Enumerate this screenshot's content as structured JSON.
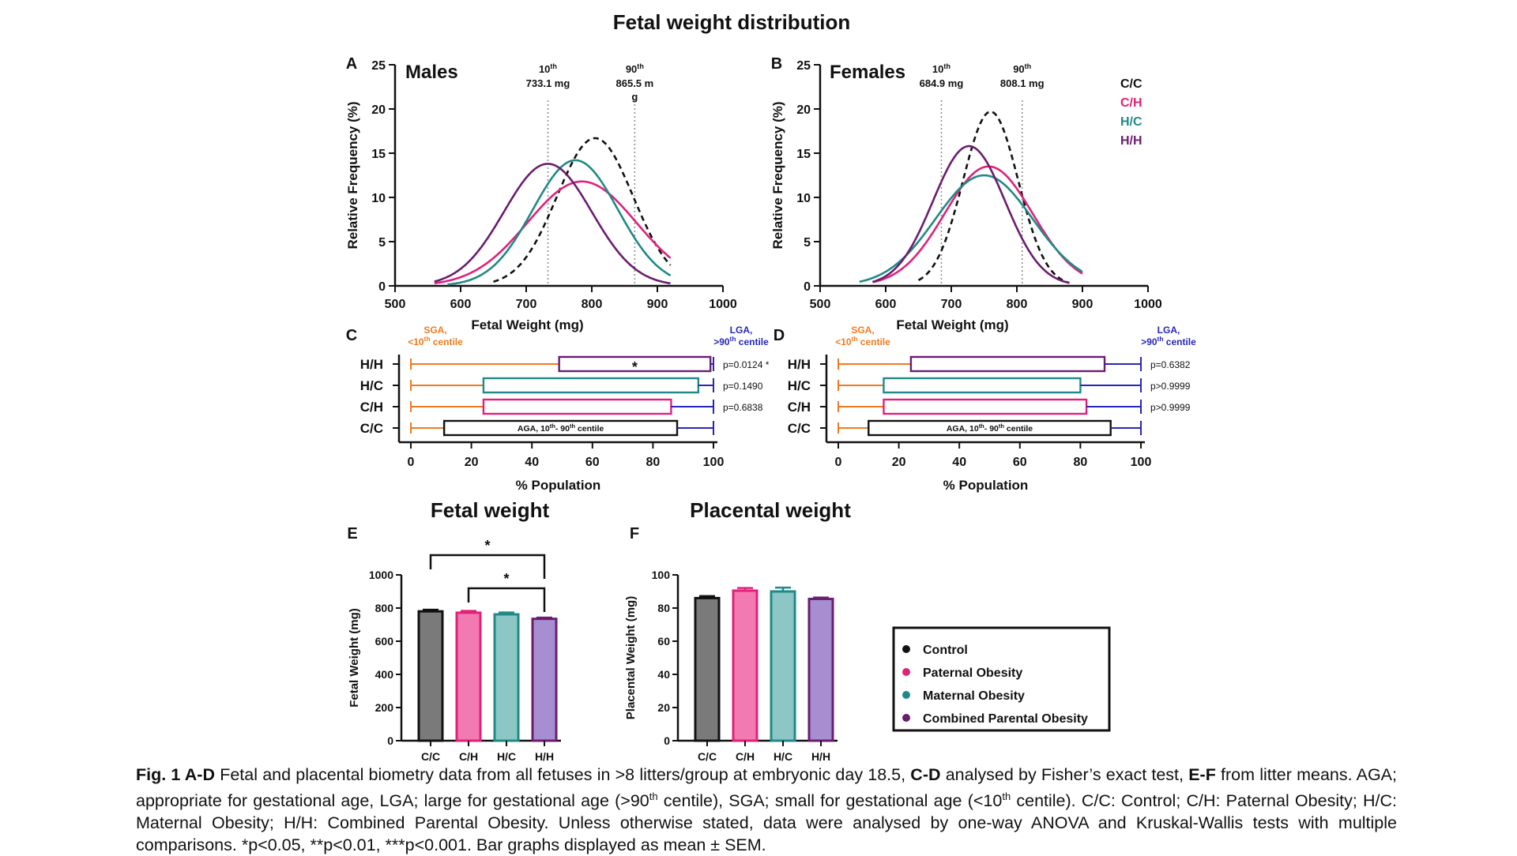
{
  "figure_title": "Fetal weight distribution",
  "colors": {
    "C/C": "#111111",
    "C/H": "#e0217a",
    "H/C": "#1f8a87",
    "H/H": "#6b1d6e",
    "orange": "#f07a22",
    "blue": "#2626b8",
    "control_fill": "#7a7a7a",
    "paternal_fill": "#f27ab0",
    "maternal_fill": "#8cc7c5",
    "combined_fill": "#a68ed0"
  },
  "legend_top": {
    "items": [
      "C/C",
      "C/H",
      "H/C",
      "H/H"
    ]
  },
  "legend_bottom": {
    "items": [
      "Control",
      "Paternal Obesity",
      "Maternal Obesity",
      "Combined Parental Obesity"
    ]
  },
  "captions": {
    "bold1": "Fig. 1 A-D",
    "t1": " Fetal and placental biometry data from all fetuses in >8 litters/group at embryonic day 18.5, ",
    "bold2": "C-D",
    "t2": " analysed by Fisher’s exact test, ",
    "bold3": "E-F",
    "t3": " from litter means. AGA; appropriate for gestational age, LGA; large for gestational age (>90",
    "sup1": "th",
    "t4": " centile), SGA; small for gestational age (<10",
    "sup2": "th",
    "t5": " centile). C/C: Control; C/H: Paternal Obesity; H/C: Maternal Obesity; H/H: Combined Parental Obesity. Unless otherwise stated, data were analysed by one-way ANOVA and Kruskal-Wallis tests with multiple comparisons. *p<0.05, **p<0.01, ***p<0.001. Bar graphs displayed as mean ± SEM."
  },
  "chart_data": [
    {
      "panel": "A",
      "type": "line",
      "title": "Males",
      "xlabel": "Fetal Weight (mg)",
      "ylabel": "Relative Frequency (%)",
      "xlim": [
        500,
        1000
      ],
      "ylim": [
        0,
        25
      ],
      "xticks": [
        500,
        600,
        700,
        800,
        900,
        1000
      ],
      "yticks": [
        0,
        5,
        10,
        15,
        20,
        25
      ],
      "ref_lines": [
        {
          "x": 733.1,
          "label_top": "10",
          "label_sup": "th",
          "label_value": "733.1 mg"
        },
        {
          "x": 865.5,
          "label_top": "90",
          "label_sup": "th",
          "label_value": "865.5 m",
          "label_wrap": "g"
        }
      ],
      "series": [
        {
          "name": "C/C",
          "mean": 805,
          "sd": 58,
          "peak": 16.7,
          "xrange": [
            650,
            920
          ],
          "dashed": true
        },
        {
          "name": "C/H",
          "mean": 785,
          "sd": 83,
          "peak": 11.8,
          "xrange": [
            560,
            920
          ]
        },
        {
          "name": "H/C",
          "mean": 775,
          "sd": 65,
          "peak": 14.2,
          "xrange": [
            580,
            920
          ]
        },
        {
          "name": "H/H",
          "mean": 733,
          "sd": 67,
          "peak": 13.8,
          "xrange": [
            560,
            920
          ]
        }
      ]
    },
    {
      "panel": "B",
      "type": "line",
      "title": "Females",
      "xlabel": "Fetal Weight (mg)",
      "ylabel": "Relative Frequency (%)",
      "xlim": [
        500,
        1000
      ],
      "ylim": [
        0,
        25
      ],
      "xticks": [
        500,
        600,
        700,
        800,
        900,
        1000
      ],
      "yticks": [
        0,
        5,
        10,
        15,
        20,
        25
      ],
      "ref_lines": [
        {
          "x": 684.9,
          "label_top": "10",
          "label_sup": "th",
          "label_value": "684.9 mg"
        },
        {
          "x": 808.1,
          "label_top": "90",
          "label_sup": "th",
          "label_value": "808.1 mg"
        }
      ],
      "series": [
        {
          "name": "C/C",
          "mean": 760,
          "sd": 42,
          "peak": 19.7,
          "xrange": [
            650,
            880
          ],
          "dashed": true
        },
        {
          "name": "C/H",
          "mean": 757,
          "sd": 67,
          "peak": 13.5,
          "xrange": [
            580,
            900
          ]
        },
        {
          "name": "H/C",
          "mean": 750,
          "sd": 74,
          "peak": 12.5,
          "xrange": [
            560,
            900
          ]
        },
        {
          "name": "H/H",
          "mean": 727,
          "sd": 55,
          "peak": 15.8,
          "xrange": [
            580,
            880
          ]
        }
      ]
    },
    {
      "panel": "C",
      "type": "bar",
      "orientation": "horizontal",
      "xlabel": "% Population",
      "xlim": [
        0,
        100
      ],
      "xticks": [
        0,
        20,
        40,
        60,
        80,
        100
      ],
      "sga_label": "SGA,",
      "sga_label2": "<10",
      "sga_sup": "th",
      "sga_label3": " centile",
      "lga_label": "LGA,",
      "lga_label2": ">90",
      "lga_sup": "th",
      "lga_label3": " centile",
      "aga_label": "AGA, 10",
      "aga_sup1": "th",
      "aga_label2": "- 90",
      "aga_sup2": "th",
      "aga_label3": " centile",
      "rows": [
        {
          "group": "H/H",
          "sga": 49,
          "aga": 50,
          "lga": 1,
          "p": "p=0.0124 *",
          "star": "*"
        },
        {
          "group": "H/C",
          "sga": 24,
          "aga": 71,
          "lga": 5,
          "p": "p=0.1490",
          "star": ""
        },
        {
          "group": "C/H",
          "sga": 24,
          "aga": 62,
          "lga": 14,
          "p": "p=0.6838",
          "star": ""
        },
        {
          "group": "C/C",
          "sga": 11,
          "aga": 77,
          "lga": 12,
          "p": "",
          "star": ""
        }
      ]
    },
    {
      "panel": "D",
      "type": "bar",
      "orientation": "horizontal",
      "xlabel": "% Population",
      "xlim": [
        0,
        100
      ],
      "xticks": [
        0,
        20,
        40,
        60,
        80,
        100
      ],
      "sga_label": "SGA,",
      "sga_label2": "<10",
      "sga_sup": "th",
      "sga_label3": " centile",
      "lga_label": "LGA,",
      "lga_label2": ">90",
      "lga_sup": "th",
      "lga_label3": " centile",
      "aga_label": "AGA, 10",
      "aga_sup1": "th",
      "aga_label2": "- 90",
      "aga_sup2": "th",
      "aga_label3": " centile",
      "rows": [
        {
          "group": "H/H",
          "sga": 24,
          "aga": 64,
          "lga": 12,
          "p": "p=0.6382",
          "star": ""
        },
        {
          "group": "H/C",
          "sga": 15,
          "aga": 65,
          "lga": 20,
          "p": "p>0.9999",
          "star": ""
        },
        {
          "group": "C/H",
          "sga": 15,
          "aga": 67,
          "lga": 18,
          "p": "p>0.9999",
          "star": ""
        },
        {
          "group": "C/C",
          "sga": 10,
          "aga": 80,
          "lga": 10,
          "p": "",
          "star": ""
        }
      ]
    },
    {
      "panel": "E",
      "type": "bar",
      "title": "Fetal weight",
      "ylabel": "Fetal Weight (mg)",
      "ylim": [
        0,
        1000
      ],
      "yticks": [
        0,
        200,
        400,
        600,
        800,
        1000
      ],
      "categories": [
        "C/C",
        "C/H",
        "H/C",
        "H/H"
      ],
      "values": [
        780,
        772,
        762,
        735
      ],
      "sem": [
        10,
        11,
        11,
        7
      ],
      "significance": [
        {
          "from": "C/C",
          "to": "H/H",
          "label": "*"
        },
        {
          "from": "C/H",
          "to": "H/H",
          "label": "*"
        }
      ]
    },
    {
      "panel": "F",
      "type": "bar",
      "title": "Placental weight",
      "ylabel": "Placental Weight (mg)",
      "ylim": [
        0,
        100
      ],
      "yticks": [
        0,
        20,
        40,
        60,
        80,
        100
      ],
      "categories": [
        "C/C",
        "C/H",
        "H/C",
        "H/H"
      ],
      "values": [
        86,
        90.5,
        90,
        85.5
      ],
      "sem": [
        1.2,
        1.6,
        2.3,
        0.8
      ]
    }
  ]
}
